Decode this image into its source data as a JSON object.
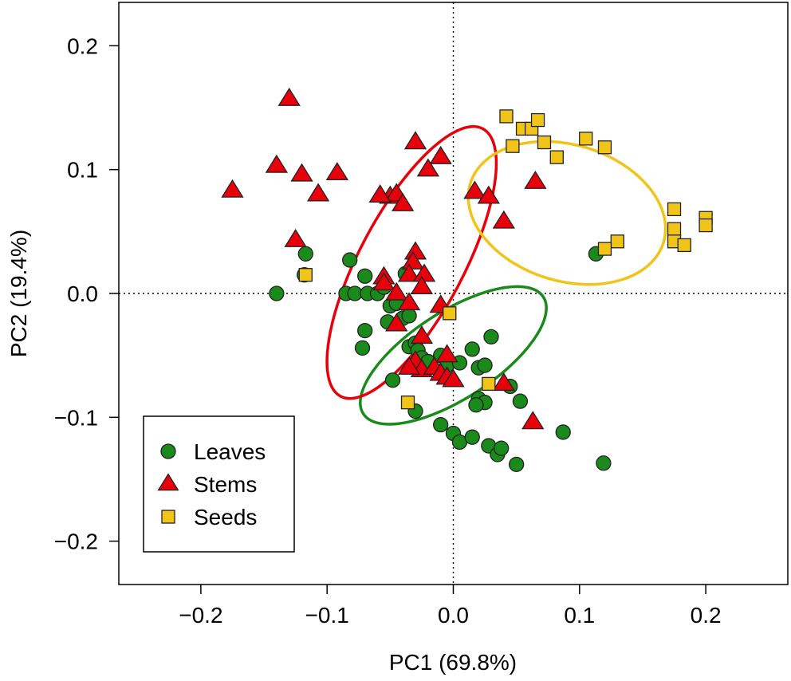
{
  "chart_data": {
    "type": "scatter",
    "title": "",
    "xlabel": "PC1 (69.8%)",
    "ylabel": "PC2 (19.4%)",
    "xlim": [
      -0.265,
      0.265
    ],
    "ylim": [
      -0.235,
      0.235
    ],
    "x_ticks": [
      -0.2,
      -0.1,
      0.0,
      0.1,
      0.2
    ],
    "x_tick_labels": [
      "−0.2",
      "−0.1",
      "0.0",
      "0.1",
      "0.2"
    ],
    "y_ticks": [
      -0.2,
      -0.1,
      0.0,
      0.1,
      0.2
    ],
    "y_tick_labels": [
      "−0.2",
      "−0.1",
      "0.0",
      "0.1",
      "0.2"
    ],
    "grid": false,
    "reference_lines": {
      "x": 0,
      "y": 0,
      "style": "dotted"
    },
    "legend": {
      "position": "bottom-left"
    },
    "series": [
      {
        "name": "Leaves",
        "marker": "circle",
        "color": "#1a8a1a",
        "points": [
          [
            -0.14,
            0.0
          ],
          [
            -0.117,
            0.032
          ],
          [
            -0.118,
            0.015
          ],
          [
            -0.082,
            0.027
          ],
          [
            -0.085,
            0.0
          ],
          [
            -0.078,
            0.0
          ],
          [
            -0.07,
            0.014
          ],
          [
            -0.068,
            0.0
          ],
          [
            -0.07,
            -0.03
          ],
          [
            -0.072,
            -0.044
          ],
          [
            -0.06,
            0.0
          ],
          [
            -0.055,
            0.005
          ],
          [
            -0.05,
            -0.01
          ],
          [
            -0.045,
            -0.008
          ],
          [
            -0.052,
            -0.023
          ],
          [
            -0.04,
            -0.02
          ],
          [
            -0.038,
            0.016
          ],
          [
            -0.035,
            -0.018
          ],
          [
            -0.035,
            -0.043
          ],
          [
            -0.03,
            -0.04
          ],
          [
            -0.028,
            -0.046
          ],
          [
            -0.025,
            -0.052
          ],
          [
            -0.02,
            -0.055
          ],
          [
            -0.01,
            -0.05
          ],
          [
            -0.005,
            -0.058
          ],
          [
            0.005,
            -0.056
          ],
          [
            0.015,
            -0.045
          ],
          [
            0.02,
            -0.06
          ],
          [
            0.025,
            -0.058
          ],
          [
            0.02,
            -0.085
          ],
          [
            0.025,
            -0.088
          ],
          [
            0.018,
            -0.09
          ],
          [
            0.045,
            -0.075
          ],
          [
            0.053,
            -0.087
          ],
          [
            -0.048,
            -0.07
          ],
          [
            -0.03,
            -0.095
          ],
          [
            -0.01,
            -0.106
          ],
          [
            0.0,
            -0.113
          ],
          [
            0.005,
            -0.12
          ],
          [
            0.015,
            -0.116
          ],
          [
            0.028,
            -0.123
          ],
          [
            0.035,
            -0.13
          ],
          [
            0.038,
            -0.125
          ],
          [
            0.05,
            -0.138
          ],
          [
            0.087,
            -0.112
          ],
          [
            0.119,
            -0.137
          ],
          [
            0.113,
            0.032
          ],
          [
            0.03,
            -0.035
          ]
        ]
      },
      {
        "name": "Stems",
        "marker": "triangle",
        "color": "#e8000b",
        "points": [
          [
            -0.175,
            0.083
          ],
          [
            -0.14,
            0.103
          ],
          [
            -0.13,
            0.157
          ],
          [
            -0.12,
            0.096
          ],
          [
            -0.107,
            0.08
          ],
          [
            -0.092,
            0.097
          ],
          [
            -0.125,
            0.043
          ],
          [
            -0.03,
            0.122
          ],
          [
            -0.01,
            0.11
          ],
          [
            -0.02,
            0.1
          ],
          [
            -0.05,
            0.078
          ],
          [
            -0.045,
            0.08
          ],
          [
            -0.058,
            0.079
          ],
          [
            -0.04,
            0.072
          ],
          [
            0.017,
            0.082
          ],
          [
            0.028,
            0.078
          ],
          [
            0.065,
            0.09
          ],
          [
            0.04,
            0.058
          ],
          [
            -0.03,
            0.033
          ],
          [
            -0.032,
            0.025
          ],
          [
            -0.035,
            0.015
          ],
          [
            -0.023,
            0.015
          ],
          [
            -0.055,
            0.013
          ],
          [
            -0.055,
            0.008
          ],
          [
            -0.025,
            0.005
          ],
          [
            -0.045,
            0.0
          ],
          [
            -0.035,
            -0.008
          ],
          [
            -0.01,
            -0.01
          ],
          [
            -0.045,
            -0.025
          ],
          [
            -0.025,
            -0.035
          ],
          [
            -0.03,
            -0.055
          ],
          [
            -0.025,
            -0.062
          ],
          [
            -0.015,
            -0.06
          ],
          [
            -0.01,
            -0.065
          ],
          [
            -0.005,
            -0.05
          ],
          [
            -0.005,
            -0.068
          ],
          [
            0.0,
            -0.07
          ],
          [
            0.04,
            -0.073
          ],
          [
            0.063,
            -0.104
          ],
          [
            -0.035,
            -0.06
          ]
        ]
      },
      {
        "name": "Seeds",
        "marker": "square",
        "color": "#f0c419",
        "points": [
          [
            0.042,
            0.143
          ],
          [
            0.055,
            0.133
          ],
          [
            0.062,
            0.133
          ],
          [
            0.067,
            0.14
          ],
          [
            0.047,
            0.119
          ],
          [
            0.072,
            0.122
          ],
          [
            0.082,
            0.11
          ],
          [
            0.105,
            0.125
          ],
          [
            0.12,
            0.118
          ],
          [
            0.175,
            0.068
          ],
          [
            0.2,
            0.061
          ],
          [
            0.2,
            0.055
          ],
          [
            0.175,
            0.052
          ],
          [
            0.175,
            0.042
          ],
          [
            0.183,
            0.039
          ],
          [
            0.13,
            0.042
          ],
          [
            0.12,
            0.036
          ],
          [
            -0.117,
            0.015
          ],
          [
            -0.003,
            -0.016
          ],
          [
            0.028,
            -0.073
          ],
          [
            -0.036,
            -0.088
          ]
        ]
      }
    ],
    "ellipses": [
      {
        "series": "Leaves",
        "color": "#1a8a1a",
        "cx": 0.0,
        "cy": -0.05,
        "rx": 0.085,
        "ry": 0.035,
        "angle_deg": -33
      },
      {
        "series": "Stems",
        "color": "#e8000b",
        "cx": -0.033,
        "cy": 0.025,
        "rx": 0.12,
        "ry": 0.042,
        "angle_deg": -62
      },
      {
        "series": "Seeds",
        "color": "#f0c419",
        "cx": 0.09,
        "cy": 0.065,
        "rx": 0.08,
        "ry": 0.055,
        "angle_deg": 17
      }
    ]
  }
}
